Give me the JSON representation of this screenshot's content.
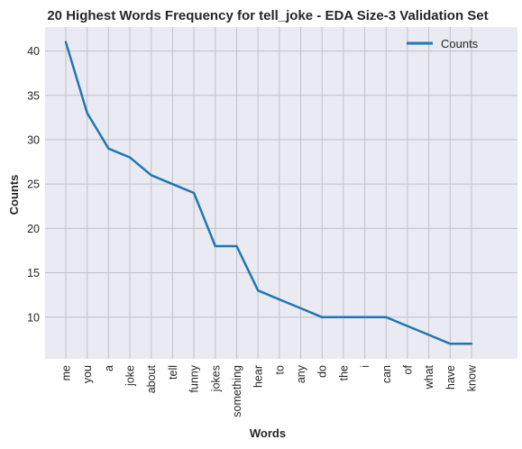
{
  "chart_data": {
    "type": "line",
    "title": "20 Highest Words Frequency for tell_joke - EDA Size-3 Validation Set",
    "xlabel": "Words",
    "ylabel": "Counts",
    "categories": [
      "me",
      "you",
      "a",
      "joke",
      "about",
      "tell",
      "funny",
      "jokes",
      "something",
      "hear",
      "to",
      "any",
      "do",
      "the",
      "i",
      "can",
      "of",
      "what",
      "have",
      "know"
    ],
    "series": [
      {
        "name": "Counts",
        "values": [
          41,
          33,
          29,
          28,
          26,
          25,
          24,
          18,
          18,
          13,
          12,
          11,
          10,
          10,
          10,
          10,
          9,
          8,
          7,
          7
        ]
      }
    ],
    "ylim": [
      5.3,
      42.7
    ],
    "yticks": [
      10,
      15,
      20,
      25,
      30,
      35,
      40
    ],
    "grid": true,
    "legend": "top-right",
    "colors": {
      "line": "#1f77b4",
      "plot_bg": "#eaeaf2",
      "grid": "#c0c0c6"
    }
  }
}
